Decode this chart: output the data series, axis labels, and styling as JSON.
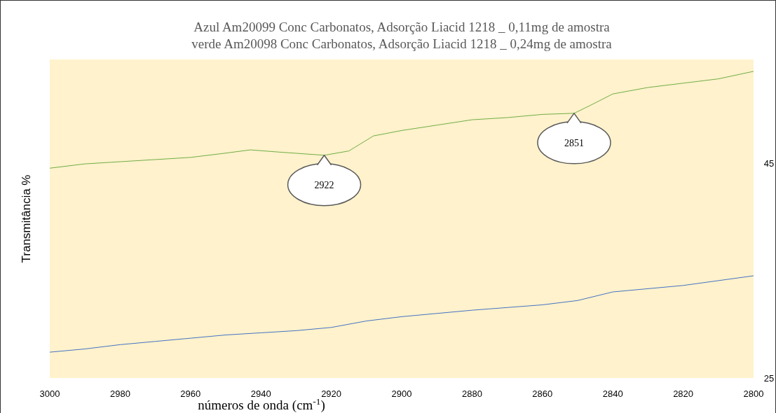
{
  "chart_data": {
    "type": "line",
    "title": "Azul Am20099 Conc Carbonatos, Adsorção Liacid 1218 _ 0,11mg de amostra",
    "subtitle": "verde Am20098 Conc Carbonatos, Adsorção Liacid 1218 _ 0,24mg de amostra",
    "xlabel": "números de onda  (cm$^{-1}$)",
    "ylabel": "Transmitância %",
    "xlim": [
      3000,
      2800
    ],
    "xticks": [
      3000,
      2980,
      2960,
      2940,
      2920,
      2900,
      2880,
      2860,
      2840,
      2820,
      2800
    ],
    "ylim": [
      25,
      54.6
    ],
    "yticks": [
      25,
      45
    ],
    "grid": false,
    "marker": "none",
    "line_style": "solid",
    "series": [
      {
        "color": "#70ad47",
        "x": [
          3000,
          2990,
          2980,
          2970,
          2960,
          2950,
          2943,
          2935,
          2922,
          2915,
          2908,
          2900,
          2890,
          2880,
          2870,
          2860,
          2851,
          2846,
          2840,
          2830,
          2820,
          2810,
          2800
        ],
        "values": [
          44.5,
          44.9,
          45.1,
          45.3,
          45.5,
          45.9,
          46.2,
          46.0,
          45.7,
          46.1,
          47.5,
          48.0,
          48.5,
          49.0,
          49.2,
          49.5,
          49.6,
          50.4,
          51.4,
          52.0,
          52.4,
          52.8,
          53.5
        ]
      },
      {
        "color": "#4472c4",
        "x": [
          3000,
          2990,
          2980,
          2970,
          2960,
          2950,
          2940,
          2930,
          2920,
          2910,
          2900,
          2880,
          2860,
          2850,
          2840,
          2820,
          2800
        ],
        "values": [
          27.4,
          27.7,
          28.1,
          28.4,
          28.7,
          29.0,
          29.2,
          29.4,
          29.7,
          30.3,
          30.7,
          31.3,
          31.8,
          32.2,
          33.0,
          33.6,
          34.5
        ]
      }
    ],
    "annotations": [
      {
        "text": "2922",
        "x": 2922,
        "y": 45.7
      },
      {
        "text": "2851",
        "x": 2851,
        "y": 49.6
      }
    ]
  }
}
